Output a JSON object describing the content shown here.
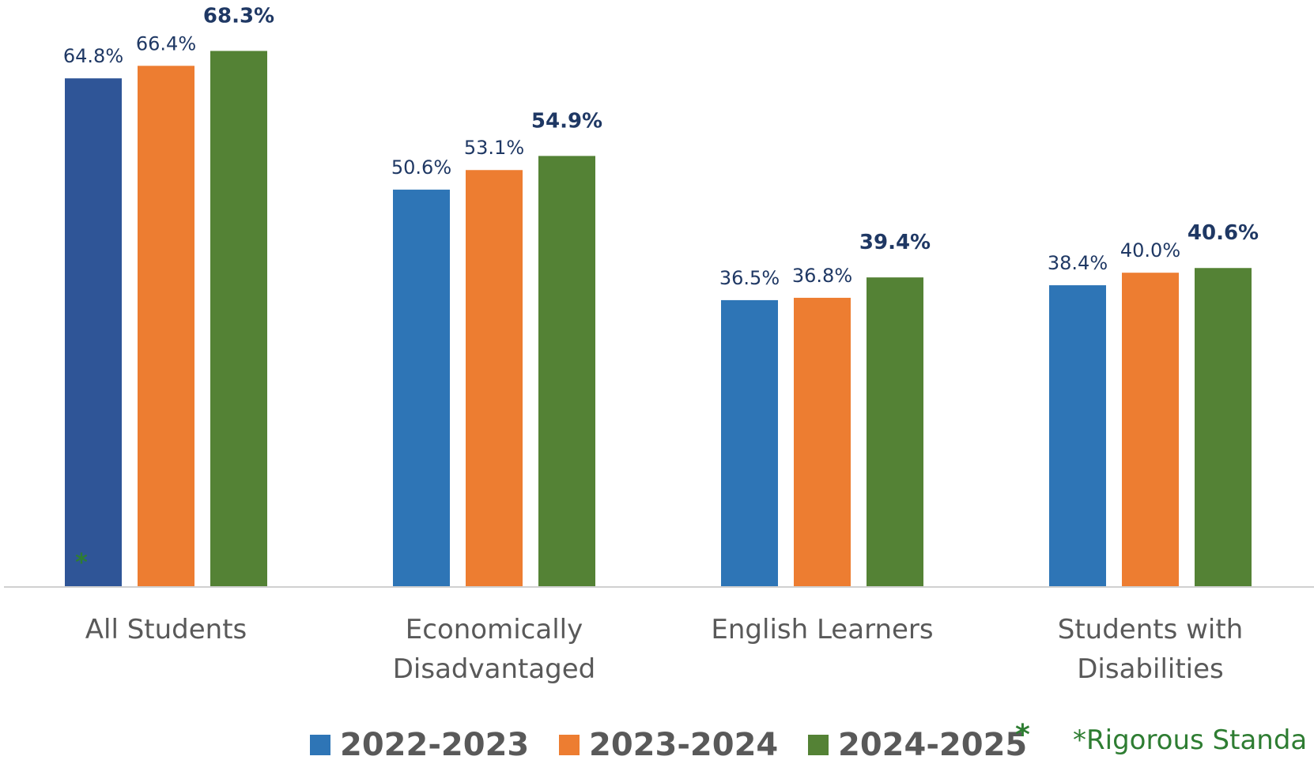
{
  "chart_data": {
    "type": "bar",
    "categories": [
      [
        "All Students"
      ],
      [
        "Economically",
        "Disadvantaged"
      ],
      [
        "English Learners"
      ],
      [
        "Students with",
        "Disabilities"
      ]
    ],
    "series": [
      {
        "name": "2022-2023",
        "values": [
          64.8,
          50.6,
          36.5,
          38.4
        ],
        "labels": [
          "64.8%",
          "50.6%",
          "36.5%",
          "38.4%"
        ]
      },
      {
        "name": "2023-2024",
        "values": [
          66.4,
          53.1,
          36.8,
          40.0
        ],
        "labels": [
          "66.4%",
          "53.1%",
          "36.8%",
          "40.0%"
        ]
      },
      {
        "name": "2024-2025",
        "values": [
          68.3,
          54.9,
          39.4,
          40.6
        ],
        "labels": [
          "68.3%",
          "54.9%",
          "39.4%",
          "40.6%"
        ]
      }
    ],
    "ylim": [
      0,
      75
    ],
    "grid": false,
    "legend_position": "bottom",
    "legend_suffix_marker": "*",
    "annotation": "*Rigorous Standa",
    "bar_star_marker": "*"
  },
  "colors": {
    "first_bar_2022": "#2f5597",
    "series": [
      "#2e75b6",
      "#ed7d31",
      "#548235"
    ],
    "value_label": "#1f3864",
    "category_text": "#595959",
    "note": "#2e7d32"
  }
}
